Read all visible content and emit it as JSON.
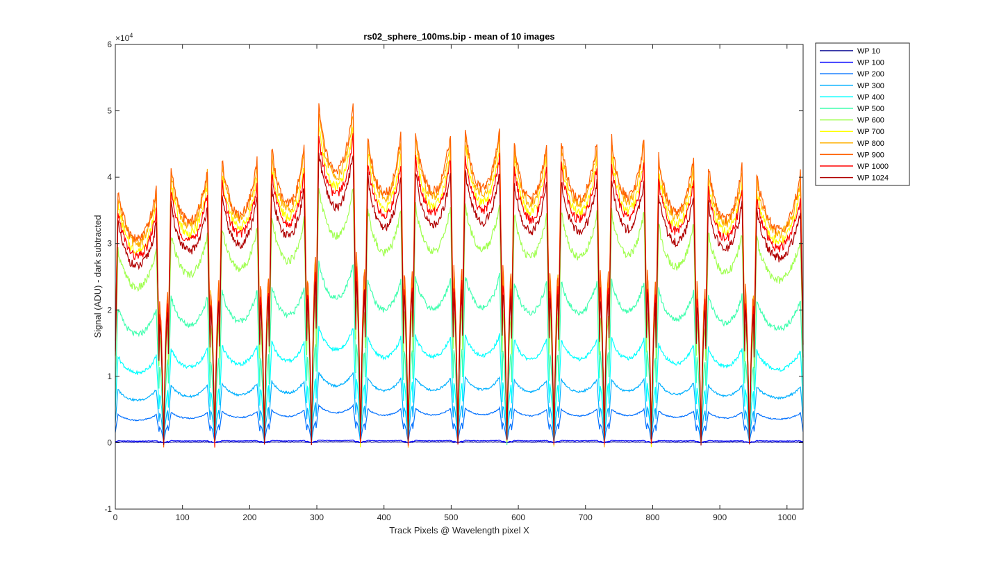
{
  "chart_data": {
    "type": "line",
    "title": "rs02_sphere_100ms.bip - mean of 10 images",
    "xlabel": "Track Pixels @ Wavelength pixel X",
    "ylabel": "Signal (ADU) - dark subtracted",
    "xlim": [
      0,
      1024
    ],
    "ylim": [
      -10000,
      60000
    ],
    "y_exponent_label": "×10",
    "y_exponent_power": "4",
    "xticks": [
      0,
      100,
      200,
      300,
      400,
      500,
      600,
      700,
      800,
      900,
      1000
    ],
    "xtick_labels": [
      "0",
      "100",
      "200",
      "300",
      "400",
      "500",
      "600",
      "700",
      "800",
      "900",
      "1000"
    ],
    "yticks": [
      -10000,
      0,
      10000,
      20000,
      30000,
      40000,
      50000,
      60000
    ],
    "ytick_labels": [
      "-1",
      "0",
      "1",
      "2",
      "3",
      "4",
      "5",
      "6"
    ],
    "grid": false,
    "legend_position": "outside-top-right",
    "gaps": [
      72,
      148,
      222,
      292,
      365,
      436,
      510,
      583,
      653,
      728,
      798,
      872,
      944
    ],
    "segment_peak_levels": [
      40000,
      43500,
      45000,
      47000,
      53500,
      49000,
      49500,
      50000,
      48000,
      48000,
      48500,
      45500,
      44000,
      42000
    ],
    "series": [
      {
        "name": "WP 10",
        "color": "#00008f",
        "amplitude": 150
      },
      {
        "name": "WP 100",
        "color": "#0000ff",
        "amplitude": 400
      },
      {
        "name": "WP 200",
        "color": "#0070ff",
        "amplitude": 5800
      },
      {
        "name": "WP 300",
        "color": "#00b0ff",
        "amplitude": 11000
      },
      {
        "name": "WP 400",
        "color": "#00ffff",
        "amplitude": 18000
      },
      {
        "name": "WP 500",
        "color": "#40ffaf",
        "amplitude": 28000
      },
      {
        "name": "WP 600",
        "color": "#a0ff50",
        "amplitude": 40000
      },
      {
        "name": "WP 700",
        "color": "#ffff00",
        "amplitude": 49500
      },
      {
        "name": "WP 800",
        "color": "#ffb000",
        "amplitude": 51500
      },
      {
        "name": "WP 900",
        "color": "#ff6000",
        "amplitude": 52500
      },
      {
        "name": "WP 1000",
        "color": "#ff0000",
        "amplitude": 48000
      },
      {
        "name": "WP 1024",
        "color": "#b00000",
        "amplitude": 45500
      }
    ]
  }
}
